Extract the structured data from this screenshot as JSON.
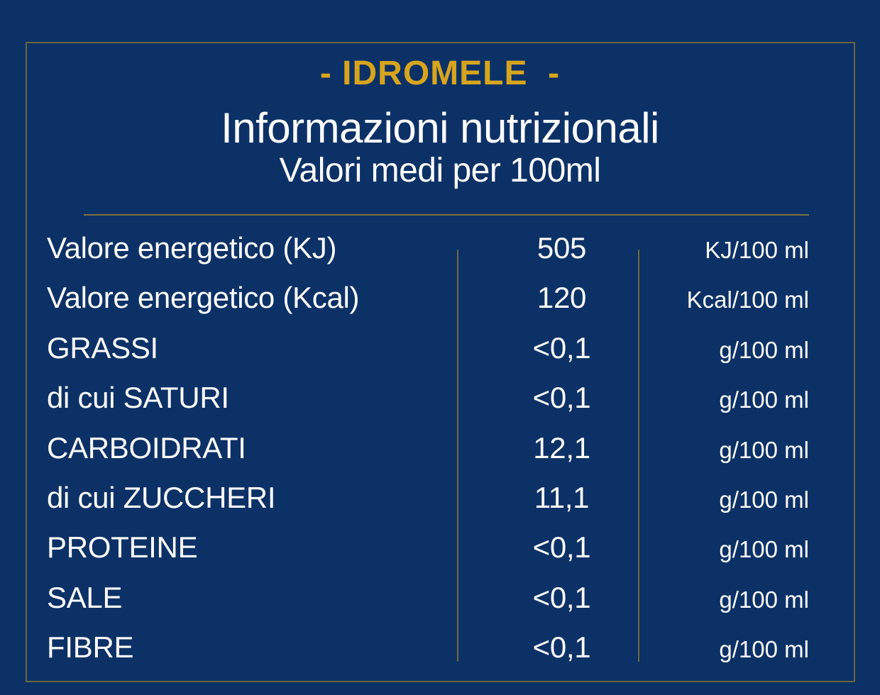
{
  "label": {
    "product_name": "- IDROMELE  -",
    "title": "Informazioni nutrizionali",
    "subtitle": "Valori medi per 100ml"
  },
  "colors": {
    "background": "#0c3166",
    "accent_gold": "#d7a51d",
    "line_gold": "#7d7440",
    "border_gold": "#6b6639",
    "text": "#fdfdfd"
  },
  "table": {
    "rows": [
      {
        "label": "Valore energetico (KJ)",
        "value": "505",
        "unit": "KJ/100 ml"
      },
      {
        "label": "Valore energetico (Kcal)",
        "value": "120",
        "unit": "Kcal/100 ml"
      },
      {
        "label": "GRASSI",
        "value": "<0,1",
        "unit": "g/100 ml"
      },
      {
        "label": "di cui SATURI",
        "value": "<0,1",
        "unit": "g/100 ml"
      },
      {
        "label": "CARBOIDRATI",
        "value": "12,1",
        "unit": "g/100 ml"
      },
      {
        "label": "di cui ZUCCHERI",
        "value": "11,1",
        "unit": "g/100 ml"
      },
      {
        "label": "PROTEINE",
        "value": "<0,1",
        "unit": "g/100 ml"
      },
      {
        "label": "SALE",
        "value": "<0,1",
        "unit": "g/100 ml"
      },
      {
        "label": "FIBRE",
        "value": "<0,1",
        "unit": "g/100 ml"
      }
    ]
  }
}
